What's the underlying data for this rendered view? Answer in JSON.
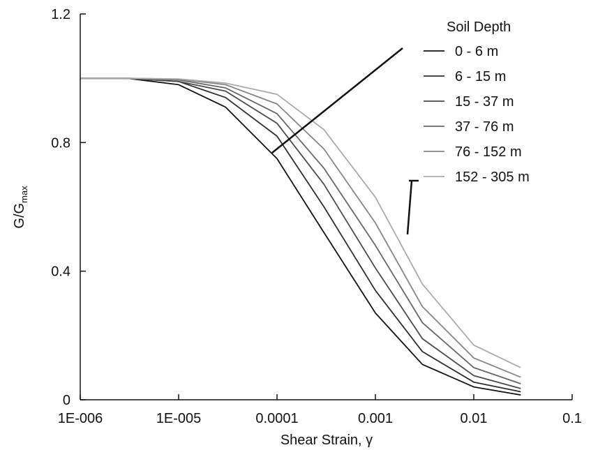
{
  "chart_data": {
    "type": "line",
    "xscale": "log",
    "xlim": [
      1e-06,
      0.1
    ],
    "ylim": [
      0,
      1.2
    ],
    "grid": false,
    "xlabel": "Shear Strain, γ",
    "ylabel_main": "G/G",
    "ylabel_sub": "max",
    "xticks": [
      {
        "value": 1e-06,
        "label": "1E-006"
      },
      {
        "value": 1e-05,
        "label": "1E-005"
      },
      {
        "value": 0.0001,
        "label": "0.0001"
      },
      {
        "value": 0.001,
        "label": "0.001"
      },
      {
        "value": 0.01,
        "label": "0.01"
      },
      {
        "value": 0.1,
        "label": "0.1"
      }
    ],
    "yticks": [
      {
        "value": 0,
        "label": "0"
      },
      {
        "value": 0.4,
        "label": "0.4"
      },
      {
        "value": 0.8,
        "label": "0.8"
      },
      {
        "value": 1.2,
        "label": "1.2"
      }
    ],
    "legend": {
      "title": "Soil Depth",
      "placement": "top-right"
    },
    "annotation": "arrows point from shallowest (0 - 6 m) curve toward deepest (152 - 305 m) curve",
    "x": [
      1e-06,
      3e-06,
      1e-05,
      3e-05,
      0.0001,
      0.0003,
      0.001,
      0.003,
      0.01,
      0.03
    ],
    "series": [
      {
        "name": "0 - 6 m",
        "color": "#111111",
        "values": [
          1.0,
          1.0,
          0.98,
          0.91,
          0.75,
          0.52,
          0.27,
          0.11,
          0.04,
          0.015
        ]
      },
      {
        "name": "6 - 15 m",
        "color": "#2e2e2e",
        "values": [
          1.0,
          1.0,
          0.99,
          0.94,
          0.82,
          0.6,
          0.34,
          0.15,
          0.055,
          0.025
        ]
      },
      {
        "name": "15 - 37 m",
        "color": "#4a4a4a",
        "values": [
          1.0,
          1.0,
          0.99,
          0.96,
          0.86,
          0.67,
          0.41,
          0.19,
          0.075,
          0.035
        ]
      },
      {
        "name": "37 - 76 m",
        "color": "#666666",
        "values": [
          1.0,
          1.0,
          0.995,
          0.97,
          0.89,
          0.72,
          0.48,
          0.24,
          0.1,
          0.05
        ]
      },
      {
        "name": "76 - 152 m",
        "color": "#858585",
        "values": [
          1.0,
          1.0,
          0.997,
          0.98,
          0.92,
          0.78,
          0.55,
          0.29,
          0.13,
          0.07
        ]
      },
      {
        "name": "152 - 305 m",
        "color": "#aaaaaa",
        "values": [
          1.0,
          1.0,
          0.998,
          0.985,
          0.95,
          0.84,
          0.63,
          0.36,
          0.17,
          0.1
        ]
      }
    ]
  }
}
